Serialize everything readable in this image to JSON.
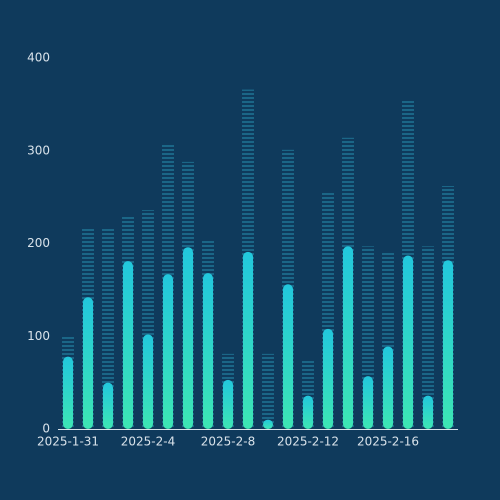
{
  "chart_data": {
    "type": "pictorial-bar",
    "categories": [
      "2025-1-31",
      null,
      null,
      null,
      "2025-2-4",
      null,
      null,
      null,
      "2025-2-8",
      null,
      null,
      null,
      "2025-2-12",
      null,
      null,
      null,
      "2025-2-16",
      null,
      null,
      null
    ],
    "series": [
      {
        "color": "#1b6687",
        "style": "dashed",
        "values": [
          100,
          217,
          217,
          230,
          236,
          307,
          288,
          204,
          81,
          366,
          81,
          301,
          74,
          256,
          314,
          197,
          191,
          354,
          197,
          262
        ]
      },
      {
        "color": "#22c7dd",
        "color_end": "#3de6b4",
        "style": "rounded",
        "values": [
          78,
          142,
          50,
          181,
          102,
          167,
          196,
          168,
          53,
          191,
          10,
          156,
          36,
          108,
          197,
          57,
          89,
          187,
          36,
          182
        ]
      }
    ],
    "ylim": [
      0,
      400
    ],
    "yticks": [
      0,
      100,
      200,
      300,
      400
    ],
    "grid": false
  }
}
